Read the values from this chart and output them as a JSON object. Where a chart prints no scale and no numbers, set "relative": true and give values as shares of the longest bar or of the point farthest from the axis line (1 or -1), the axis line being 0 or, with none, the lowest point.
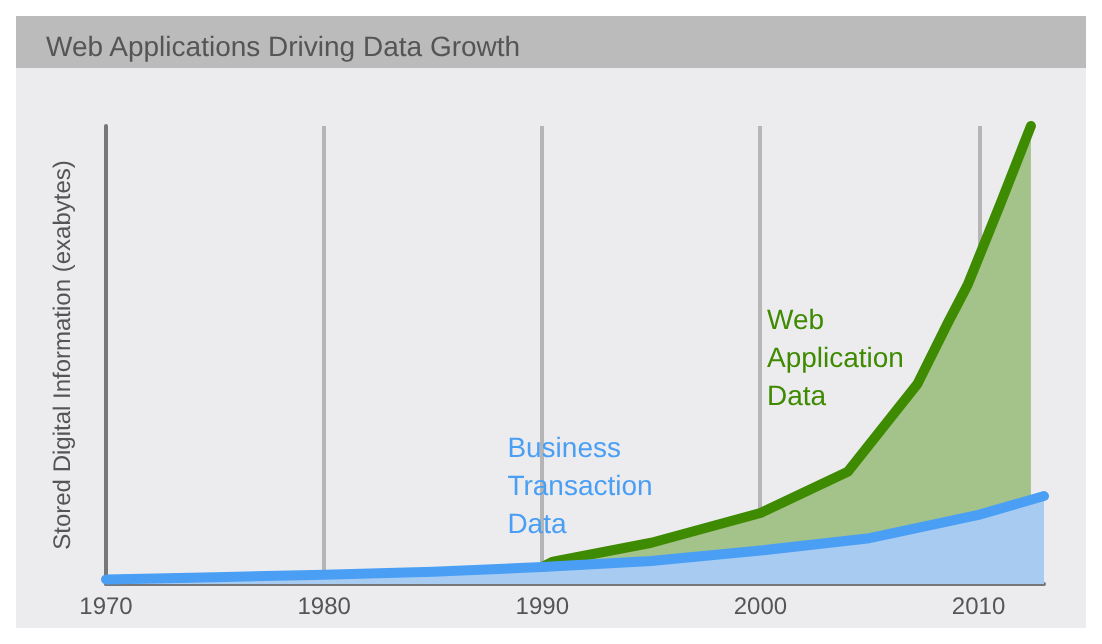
{
  "chart_data": {
    "type": "area",
    "title": "Web Applications Driving Data Growth",
    "ylabel": "Stored Digital Information (exabytes)",
    "relative": true,
    "xlim": [
      1970,
      2013
    ],
    "xticks": [
      1970,
      1980,
      1990,
      2000,
      2010
    ],
    "grid": "x",
    "line_style": "solid",
    "series": [
      {
        "name": "Web Application Data",
        "color": "#3e8a00",
        "x": [
          1990,
          1990.5,
          1995,
          2000,
          2004,
          2007.2,
          2008.6,
          2009.5,
          2011,
          2012.4
        ],
        "values": [
          0.037,
          0.049,
          0.09,
          0.155,
          0.245,
          0.437,
          0.571,
          0.653,
          0.83,
          1
        ]
      },
      {
        "name": "Business Transaction Data",
        "color": "#4a9ff5",
        "x": [
          1970,
          1975,
          1980,
          1985,
          1990,
          1995,
          2000,
          2005,
          2010,
          2013
        ],
        "values": [
          0.01,
          0.015,
          0.02,
          0.027,
          0.037,
          0.05,
          0.073,
          0.1,
          0.151,
          0.192
        ]
      }
    ]
  }
}
